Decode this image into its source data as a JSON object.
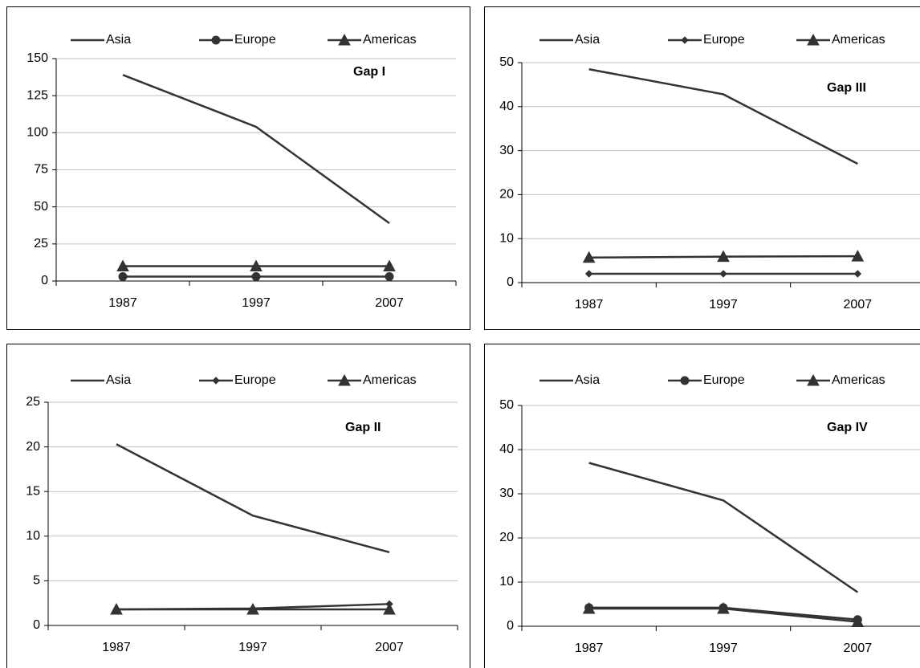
{
  "chart_data": [
    {
      "type": "line",
      "annotation": "Gap I",
      "categories": [
        "1987",
        "1997",
        "2007"
      ],
      "series": [
        {
          "name": "Asia",
          "color": "#333333",
          "marker": "none",
          "values": [
            139,
            104,
            39
          ]
        },
        {
          "name": "Europe",
          "color": "#333333",
          "marker": "circle",
          "values": [
            3,
            3,
            3
          ]
        },
        {
          "name": "Americas",
          "color": "#333333",
          "marker": "triangle",
          "values": [
            10,
            10,
            10
          ]
        }
      ],
      "ylim": [
        0,
        150
      ],
      "yticks": [
        0,
        25,
        50,
        75,
        100,
        125,
        150
      ],
      "grid": true
    },
    {
      "type": "line",
      "annotation": "Gap III",
      "categories": [
        "1987",
        "1997",
        "2007"
      ],
      "series": [
        {
          "name": "Asia",
          "color": "#333333",
          "marker": "none",
          "values": [
            48.5,
            42.8,
            27
          ]
        },
        {
          "name": "Europe",
          "color": "#333333",
          "marker": "diamond",
          "values": [
            2,
            2,
            2
          ]
        },
        {
          "name": "Americas",
          "color": "#333333",
          "marker": "triangle",
          "values": [
            5.7,
            5.9,
            6
          ]
        }
      ],
      "ylim": [
        0,
        50
      ],
      "yticks": [
        0,
        10,
        20,
        30,
        40,
        50
      ],
      "grid": true
    },
    {
      "type": "line",
      "annotation": "Gap II",
      "categories": [
        "1987",
        "1997",
        "2007"
      ],
      "series": [
        {
          "name": "Asia",
          "color": "#333333",
          "marker": "none",
          "values": [
            20.3,
            12.3,
            8.2
          ]
        },
        {
          "name": "Europe",
          "color": "#333333",
          "marker": "diamond",
          "values": [
            1.8,
            1.9,
            2.4
          ]
        },
        {
          "name": "Americas",
          "color": "#333333",
          "marker": "triangle",
          "values": [
            1.8,
            1.8,
            1.8
          ]
        }
      ],
      "ylim": [
        0,
        25
      ],
      "yticks": [
        0,
        5,
        10,
        15,
        20,
        25
      ],
      "grid": true
    },
    {
      "type": "line",
      "annotation": "Gap IV",
      "categories": [
        "1987",
        "1997",
        "2007"
      ],
      "series": [
        {
          "name": "Asia",
          "color": "#333333",
          "marker": "none",
          "values": [
            37,
            28.5,
            7.7
          ]
        },
        {
          "name": "Europe",
          "color": "#333333",
          "marker": "circle",
          "values": [
            4.2,
            4.2,
            1.5
          ]
        },
        {
          "name": "Americas",
          "color": "#333333",
          "marker": "triangle",
          "values": [
            4,
            4,
            1
          ]
        }
      ],
      "ylim": [
        0,
        50
      ],
      "yticks": [
        0,
        10,
        20,
        30,
        40,
        50
      ],
      "grid": true
    }
  ]
}
